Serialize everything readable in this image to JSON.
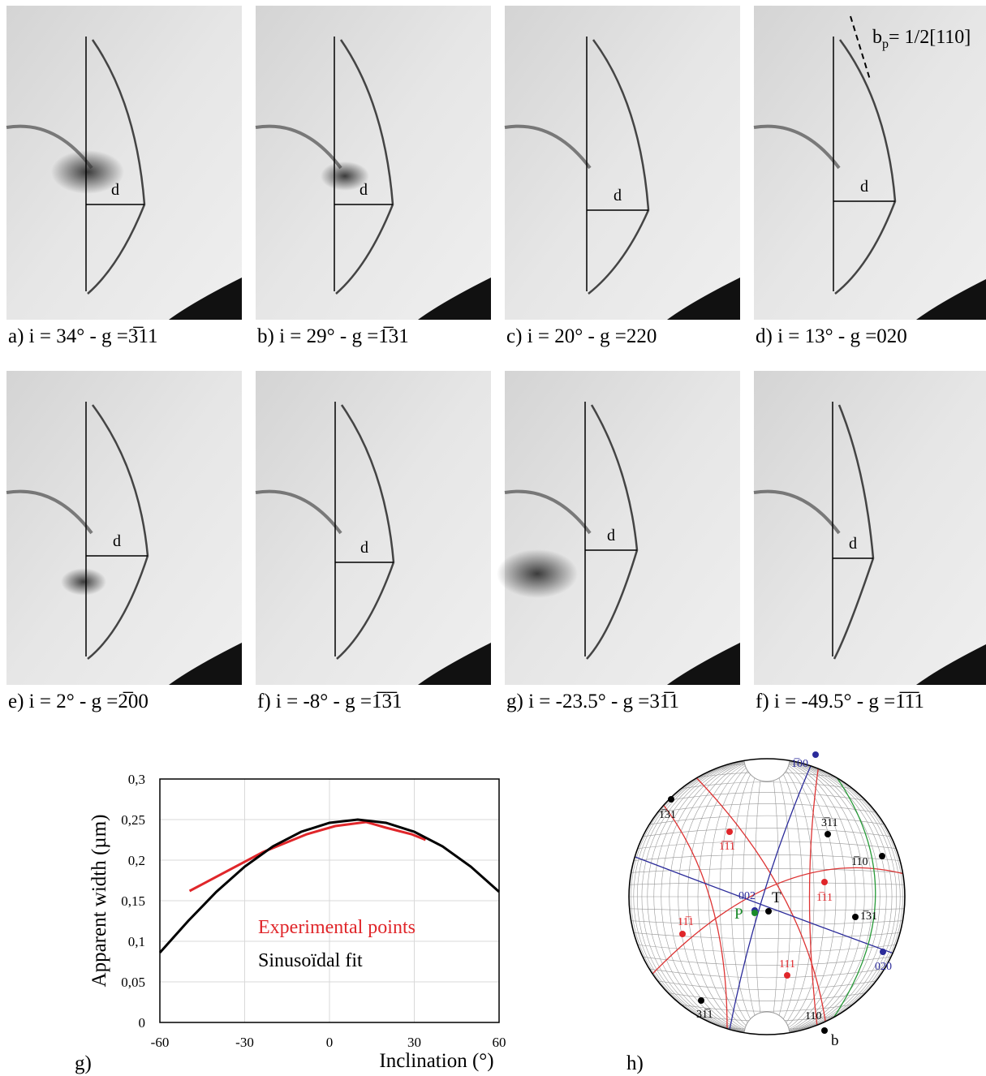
{
  "panels": [
    {
      "caption": "a)  i = 34° - g =3̅11",
      "d_label": "d"
    },
    {
      "caption": "b)  i = 29° - g =1̅31",
      "d_label": "d"
    },
    {
      "caption": "c)  i = 20° - g =220",
      "d_label": "d"
    },
    {
      "caption": "d)  i = 13° - g =020",
      "d_label": "d",
      "annotation": {
        "main": "b",
        "sub": "p",
        "rest": "= 1/2[110]"
      }
    },
    {
      "caption": "e)  i = 2° - g =2̅00",
      "d_label": "d"
    },
    {
      "caption": "f)  i = -8° - g =1̅3̅1",
      "d_label": "d"
    },
    {
      "caption": "g)  i = -23.5° - g =31̅1",
      "d_label": "d"
    },
    {
      "caption": "f)  i = -49.5° - g =1̅1̅1",
      "d_label": "d"
    }
  ],
  "chart_data": {
    "type": "line",
    "panel_label": "g)",
    "x_label": "Inclination (°)",
    "y_label": "Apparent width  (µm)",
    "xlim": [
      -60,
      60
    ],
    "xticks": [
      -60,
      -30,
      0,
      30,
      60
    ],
    "ylim": [
      0,
      0.3
    ],
    "yticks": [
      0,
      {
        "value": 0.05,
        "label": "0,05"
      },
      {
        "value": 0.1,
        "label": "0,1"
      },
      {
        "value": 0.15,
        "label": "0,15"
      },
      {
        "value": 0.2,
        "label": "0,2"
      },
      {
        "value": 0.25,
        "label": "0,25"
      },
      {
        "value": 0.3,
        "label": "0,3"
      }
    ],
    "grid": true,
    "series": [
      {
        "name": "Experimental points",
        "color": "#e0262a",
        "x": [
          -49.5,
          -23.5,
          -8,
          2,
          13,
          20,
          29,
          34
        ],
        "values": [
          0.162,
          0.21,
          0.232,
          0.242,
          0.247,
          0.24,
          0.232,
          0.225
        ]
      },
      {
        "name": "Sinusoïdal fit",
        "color": "#000000",
        "x": [
          -60,
          -50,
          -40,
          -30,
          -20,
          -10,
          0,
          10,
          20,
          30,
          40,
          50,
          60
        ],
        "values": [
          0.086,
          0.125,
          0.161,
          0.192,
          0.217,
          0.235,
          0.246,
          0.25,
          0.246,
          0.235,
          0.217,
          0.192,
          0.161
        ]
      }
    ]
  },
  "stereogram": {
    "panel_label": "h)",
    "poles": [
      {
        "label": "1̅00",
        "color": "#2b2b9a"
      },
      {
        "label": "1̅31",
        "color": "#000000"
      },
      {
        "label": "1̅1̅1",
        "color": "#e0262a"
      },
      {
        "label": "3̅11",
        "color": "#000000"
      },
      {
        "label": "1̅10",
        "color": "#000000"
      },
      {
        "label": "1̅11",
        "color": "#e0262a"
      },
      {
        "label": "002",
        "color": "#2b2b9a"
      },
      {
        "label": "T",
        "color": "#000000"
      },
      {
        "label": "P",
        "color": "#1a8a2a"
      },
      {
        "label": "1̅31",
        "color": "#000000"
      },
      {
        "label": "11̅1",
        "color": "#e0262a"
      },
      {
        "label": "020",
        "color": "#2b2b9a"
      },
      {
        "label": "111",
        "color": "#e0262a"
      },
      {
        "label": "31̅1",
        "color": "#000000"
      },
      {
        "label": "110",
        "color": "#000000"
      },
      {
        "label": "b",
        "color": "#000000"
      }
    ]
  }
}
